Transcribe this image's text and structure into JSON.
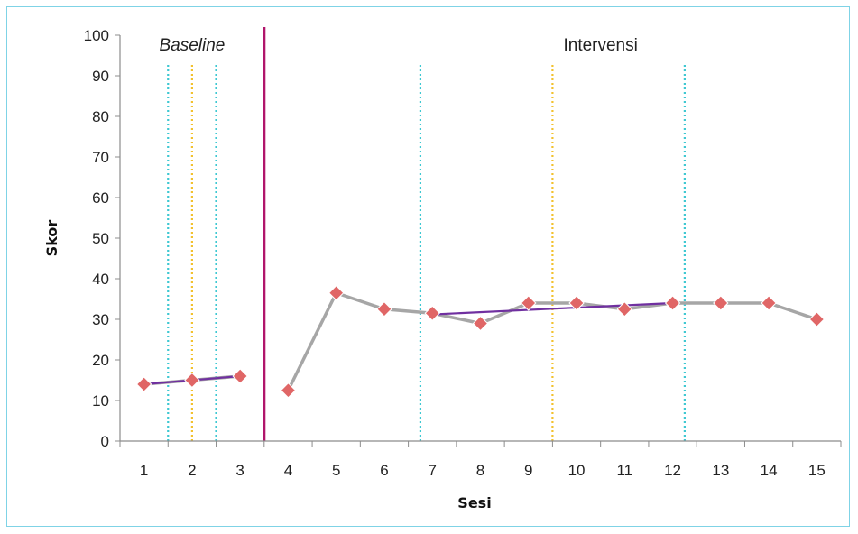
{
  "chart_data": {
    "type": "line",
    "title": "",
    "xlabel": "Sesi",
    "ylabel": "Skor",
    "ylim": [
      0,
      100
    ],
    "yticks": [
      0,
      10,
      20,
      30,
      40,
      50,
      60,
      70,
      80,
      90,
      100
    ],
    "xlim": [
      0.5,
      15.5
    ],
    "x": [
      1,
      2,
      3,
      4,
      5,
      6,
      7,
      8,
      9,
      10,
      11,
      12,
      13,
      14,
      15
    ],
    "phases": [
      {
        "label": "Baseline",
        "style": "italic",
        "sessions": [
          1,
          2,
          3
        ]
      },
      {
        "label": "Intervensi",
        "style": "normal",
        "sessions": [
          4,
          5,
          6,
          7,
          8,
          9,
          10,
          11,
          12,
          13,
          14,
          15
        ]
      }
    ],
    "phase_change_line": {
      "x": 3.5,
      "color": "#b0156b"
    },
    "series": [
      {
        "values": [
          14,
          15,
          16,
          12.5,
          36.5,
          32.5,
          31.5,
          29,
          34,
          34,
          32.5,
          34,
          34,
          34,
          30
        ],
        "line_color": "#a6a6a6",
        "marker_color": "#e06666",
        "marker": "diamond",
        "segments": [
          [
            1,
            3
          ],
          [
            4,
            15
          ]
        ]
      }
    ],
    "trend_lines": [
      {
        "color": "#7030a0",
        "from": [
          1,
          14
        ],
        "to": [
          3,
          16
        ]
      },
      {
        "color": "#7030a0",
        "from": [
          7,
          31.2
        ],
        "to": [
          12,
          34
        ]
      }
    ],
    "reference_lines": [
      {
        "x": 1.5,
        "color": "#3ec8d2",
        "style": "dotted"
      },
      {
        "x": 2.0,
        "color": "#f2c12e",
        "style": "dotted"
      },
      {
        "x": 2.5,
        "color": "#3ec8d2",
        "style": "dotted"
      },
      {
        "x": 6.75,
        "color": "#3ec8d2",
        "style": "dotted"
      },
      {
        "x": 9.5,
        "color": "#f2c12e",
        "style": "dotted"
      },
      {
        "x": 12.25,
        "color": "#3ec8d2",
        "style": "dotted"
      }
    ],
    "grid": false,
    "legend": "none"
  }
}
